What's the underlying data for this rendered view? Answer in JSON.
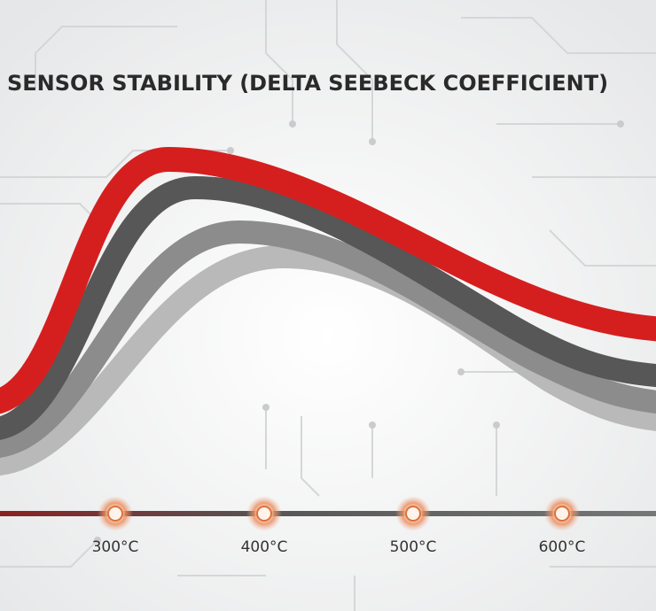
{
  "title": "SENSOR STABILITY (DELTA SEEBECK COEFFICIENT)",
  "axis": {
    "labels": [
      "300°C",
      "400°C",
      "500°C",
      "600°C"
    ]
  }
}
